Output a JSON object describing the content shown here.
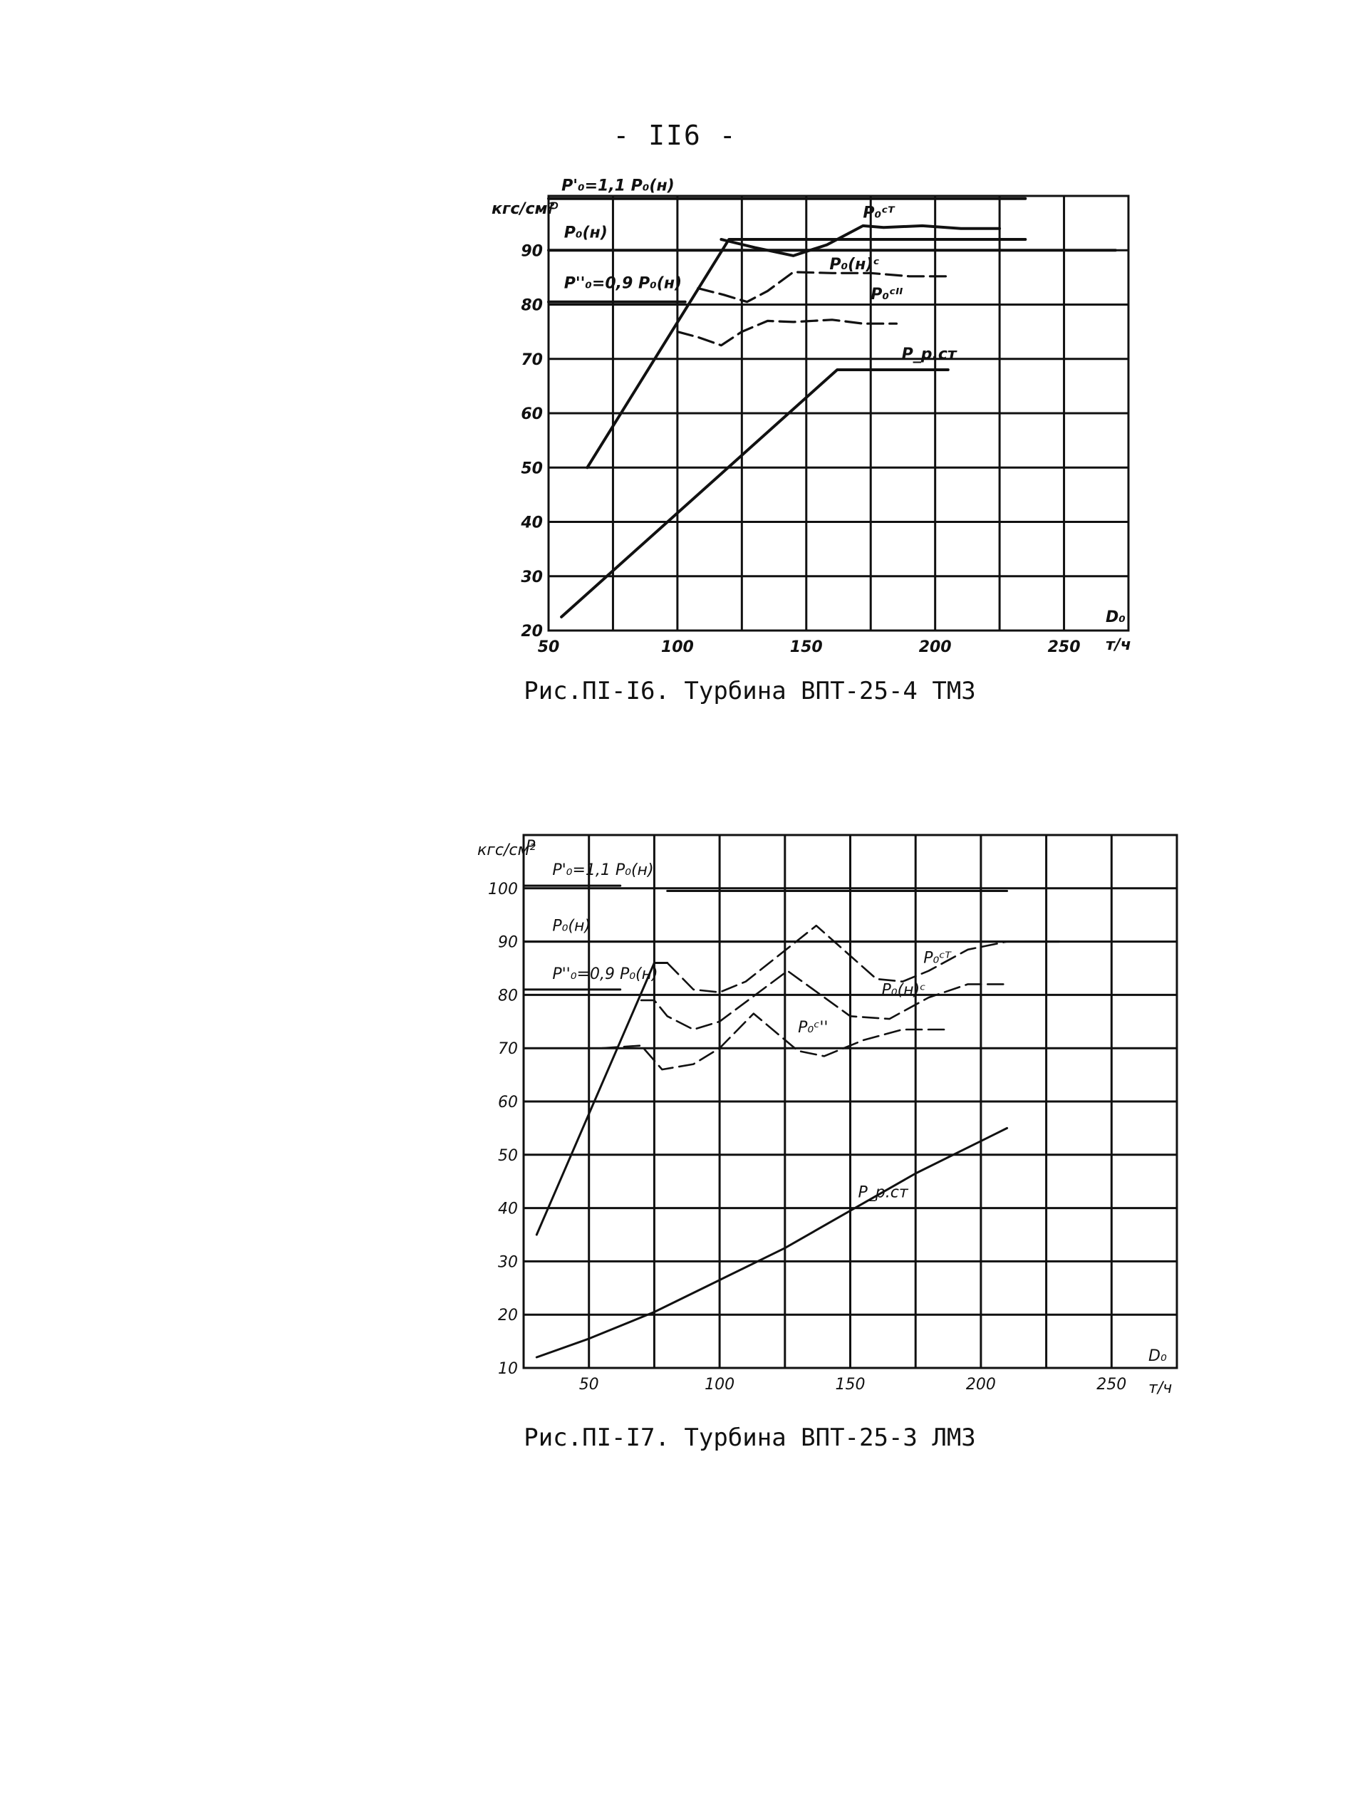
{
  "page": {
    "number": "- II6 -"
  },
  "chart_data": [
    {
      "type": "line",
      "caption": "Рис.ПI-I6. Турбина ВПТ-25-4 ТМЗ",
      "unit_y": "кгс/см²",
      "y_symbol": "P",
      "x_symbol": "D₀",
      "x_unit": "т/ч",
      "x_range": [
        50,
        275
      ],
      "y_range": [
        20,
        100
      ],
      "x_ticks": [
        50,
        100,
        150,
        200,
        250
      ],
      "x_tick_labels": [
        "50",
        "100",
        "150",
        "200",
        "250"
      ],
      "y_ticks": [
        20,
        30,
        40,
        50,
        60,
        70,
        80,
        90
      ],
      "y_tick_labels": [
        "20",
        "30",
        "40",
        "50",
        "60",
        "70",
        "80",
        "90"
      ],
      "grid": true,
      "series": [
        {
          "name": "P'₀=1,1 P₀(н)",
          "style": "solid",
          "label_at": [
            55,
            101
          ],
          "x": [
            50,
            235
          ],
          "y": [
            99.5,
            99.5
          ]
        },
        {
          "name": "P₀(н)",
          "style": "solid",
          "label_at": [
            56,
            92.3
          ],
          "x": [
            50,
            270
          ],
          "y": [
            90,
            90
          ]
        },
        {
          "name": "P''₀=0,9 P₀(н)",
          "style": "solid",
          "label_at": [
            56,
            83
          ],
          "x": [
            50,
            103
          ],
          "y": [
            80.5,
            80.5
          ]
        },
        {
          "name": "P₀ᶜᵀ",
          "style": "solid",
          "label_at": [
            172,
            96
          ],
          "x": [
            117,
            130,
            145,
            158,
            172,
            180,
            195,
            210,
            225
          ],
          "y": [
            92,
            90.5,
            89,
            91,
            94.5,
            94.2,
            94.5,
            94,
            94
          ]
        },
        {
          "name": "P₀(н)ᶜ",
          "style": "dashed",
          "label_at": [
            159,
            86.5
          ],
          "x": [
            108,
            118,
            127,
            135,
            145,
            160,
            175,
            190,
            205
          ],
          "y": [
            83,
            81.8,
            80.5,
            82.5,
            86,
            85.8,
            85.8,
            85.2,
            85.2
          ]
        },
        {
          "name": "P₀ᶜᴵᴵ",
          "style": "dashed",
          "label_at": [
            175,
            81
          ],
          "x": [
            100,
            108,
            117,
            125,
            135,
            145,
            160,
            172,
            185
          ],
          "y": [
            75,
            74,
            72.5,
            75,
            77,
            76.8,
            77.2,
            76.5,
            76.5
          ]
        },
        {
          "name": "P_р.ст",
          "style": "solid",
          "label_at": [
            187,
            70
          ],
          "x": [
            55,
            162,
            205
          ],
          "y": [
            22.5,
            68,
            68
          ]
        },
        {
          "name": "",
          "style": "solid",
          "x": [
            65,
            120,
            235
          ],
          "y": [
            50,
            92,
            92
          ]
        }
      ]
    },
    {
      "type": "line",
      "caption": "Рис.ПI-I7. Турбина ВПТ-25-3 ЛМЗ",
      "unit_y": "кгс/см²",
      "y_symbol": "P",
      "x_symbol": "D₀",
      "x_unit": "т/ч",
      "x_range": [
        25,
        275
      ],
      "y_range": [
        10,
        110
      ],
      "x_ticks": [
        50,
        100,
        150,
        200,
        250
      ],
      "x_tick_labels": [
        "50",
        "100",
        "150",
        "200",
        "250"
      ],
      "y_ticks": [
        10,
        20,
        30,
        40,
        50,
        60,
        70,
        80,
        90,
        100
      ],
      "y_tick_labels": [
        "10",
        "20",
        "30",
        "40",
        "50",
        "60",
        "70",
        "80",
        "90",
        "100"
      ],
      "grid": true,
      "series": [
        {
          "name": "P'₀=1,1 P₀(н)",
          "style": "solid",
          "label_at": [
            36,
            102.5
          ],
          "x": [
            25,
            62
          ],
          "y": [
            100.5,
            100.5
          ]
        },
        {
          "name": "",
          "style": "solid",
          "x": [
            80,
            210
          ],
          "y": [
            99.5,
            99.5
          ]
        },
        {
          "name": "P₀(н)",
          "style": "solid",
          "label_at": [
            36,
            92
          ],
          "x": [
            25,
            230
          ],
          "y": [
            90,
            90
          ]
        },
        {
          "name": "P''₀=0,9 P₀(н)",
          "style": "solid",
          "label_at": [
            36,
            83
          ],
          "x": [
            25,
            62
          ],
          "y": [
            81,
            81
          ]
        },
        {
          "name": "",
          "style": "solid",
          "x": [
            30,
            75,
            80
          ],
          "y": [
            35,
            86,
            86
          ]
        },
        {
          "name": "P₀ᶜᵀ",
          "style": "dashed",
          "label_at": [
            178,
            86
          ],
          "x": [
            80,
            90,
            100,
            110,
            137,
            160,
            170,
            180,
            195,
            210,
            230
          ],
          "y": [
            86,
            81,
            80.5,
            82.5,
            93,
            83,
            82.5,
            84.5,
            88.5,
            90,
            90
          ]
        },
        {
          "name": "P₀(н)ᶜ",
          "style": "dashed",
          "label_at": [
            162,
            80
          ],
          "x": [
            70,
            75,
            80,
            90,
            100,
            126,
            150,
            165,
            180,
            195,
            210
          ],
          "y": [
            79,
            79,
            76,
            73.5,
            75,
            84.5,
            76,
            75.5,
            79.5,
            82,
            82
          ]
        },
        {
          "name": "P₀ᶜ''",
          "style": "dashed",
          "label_at": [
            130,
            73
          ],
          "x": [
            55,
            70,
            78,
            90,
            100,
            113,
            130,
            140,
            155,
            170,
            188
          ],
          "y": [
            70,
            70.5,
            66,
            67,
            70,
            76.5,
            69.5,
            68.5,
            71.5,
            73.5,
            73.5
          ]
        },
        {
          "name": "P_р.ст",
          "style": "solid",
          "label_at": [
            153,
            42
          ],
          "x": [
            30,
            50,
            75,
            100,
            125,
            150,
            175,
            210
          ],
          "y": [
            12,
            15.5,
            20.5,
            26.5,
            32.5,
            39.5,
            46.5,
            55
          ]
        }
      ]
    }
  ]
}
